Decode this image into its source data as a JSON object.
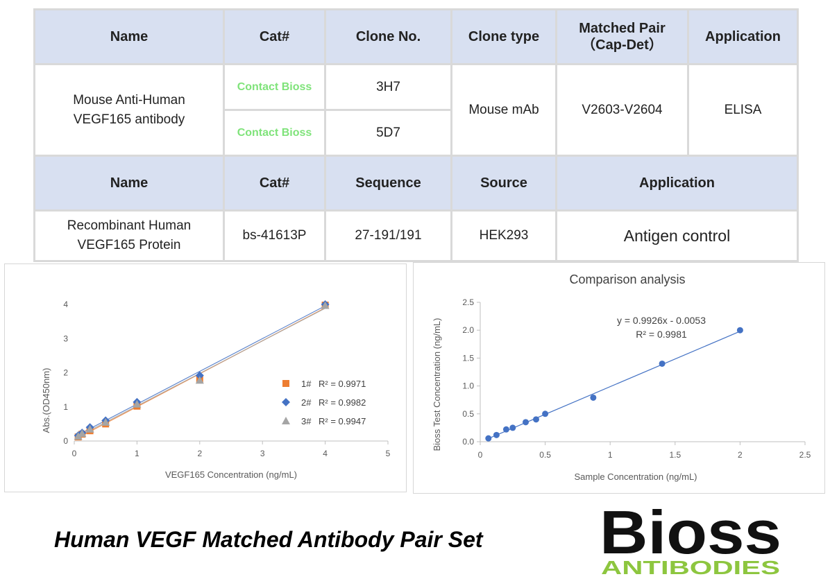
{
  "table1": {
    "headers": [
      "Name",
      "Cat#",
      "Clone No.",
      "Clone type",
      "Matched Pair\n（Cap-Det）",
      "Application"
    ],
    "name": "Mouse Anti-Human\nVEGF165 antibody",
    "cat_1": "Contact Bioss",
    "cat_2": "Contact Bioss",
    "clone_1": "3H7",
    "clone_2": "5D7",
    "clone_type": "Mouse mAb",
    "matched_pair": "V2603-V2604",
    "application": "ELISA"
  },
  "table2": {
    "headers": [
      "Name",
      "Cat#",
      "Sequence",
      "Source",
      "Application"
    ],
    "name": "Recombinant Human\nVEGF165 Protein",
    "cat": "bs-41613P",
    "sequence": "27-191/191",
    "source": "HEK293",
    "application": "Antigen control"
  },
  "chart_data": [
    {
      "type": "scatter",
      "title": "",
      "xlabel": "VEGF165 Concentration (ng/mL)",
      "ylabel": "Abs.(OD450nm)",
      "xlim": [
        0,
        5
      ],
      "ylim": [
        0,
        4
      ],
      "xticks": [
        "0",
        "1",
        "2",
        "3",
        "4",
        "5"
      ],
      "yticks": [
        "0",
        "1",
        "2",
        "3",
        "4"
      ],
      "grid": false,
      "legend_position": "right",
      "series": [
        {
          "name": "1#",
          "r2": "R² = 0.9971",
          "color": "#ed7d31",
          "marker": "square",
          "x": [
            0.0625,
            0.125,
            0.25,
            0.5,
            1,
            2,
            4
          ],
          "y": [
            0.12,
            0.2,
            0.3,
            0.5,
            1.02,
            1.8,
            3.98
          ]
        },
        {
          "name": "2#",
          "r2": "R² = 0.9982",
          "color": "#4472c4",
          "marker": "diamond",
          "x": [
            0.0625,
            0.125,
            0.25,
            0.5,
            1,
            2,
            4
          ],
          "y": [
            0.16,
            0.24,
            0.4,
            0.6,
            1.14,
            1.92,
            4.0
          ]
        },
        {
          "name": "3#",
          "r2": "R² = 0.9947",
          "color": "#a5a5a5",
          "marker": "triangle",
          "x": [
            0.0625,
            0.125,
            0.25,
            0.5,
            1,
            2,
            4
          ],
          "y": [
            0.14,
            0.22,
            0.35,
            0.55,
            1.08,
            1.78,
            3.97
          ]
        }
      ]
    },
    {
      "type": "scatter",
      "title": "Comparison analysis",
      "xlabel": "Sample Concentration (ng/mL)",
      "ylabel": "Bioss Test Concentration (ng/mL)",
      "xlim": [
        0,
        2.5
      ],
      "ylim": [
        0,
        2.5
      ],
      "xticks": [
        "0",
        "0.5",
        "1",
        "1.5",
        "2",
        "2.5"
      ],
      "yticks": [
        "0.0",
        "0.5",
        "1.0",
        "1.5",
        "2.0",
        "2.5"
      ],
      "grid": false,
      "equation": "y = 0.9926x - 0.0053",
      "r2": "R² = 0.9981",
      "fit": {
        "slope": 0.9926,
        "intercept": -0.0053
      },
      "color": "#4472c4",
      "x": [
        0.063,
        0.125,
        0.2,
        0.25,
        0.35,
        0.43,
        0.5,
        0.87,
        1.4,
        2.0
      ],
      "y": [
        0.06,
        0.12,
        0.22,
        0.25,
        0.35,
        0.4,
        0.5,
        0.79,
        1.4,
        2.0
      ]
    }
  ],
  "footer": {
    "title": "Human VEGF Matched Antibody Pair Set",
    "logo_top": "Bioss",
    "logo_bottom": "ANTIBODIES"
  },
  "colors": {
    "header_bg": "#d8e0f1",
    "contact_text": "#7fe37a",
    "logo_green": "#8dc63f"
  }
}
